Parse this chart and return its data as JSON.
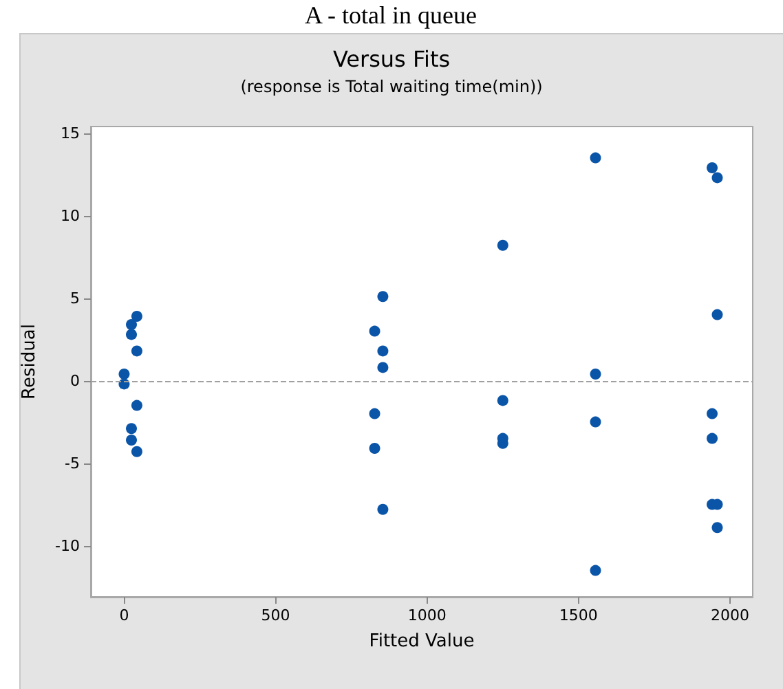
{
  "chart_data": {
    "type": "scatter",
    "title": "Versus Fits",
    "subtitle": "(response is Total waiting time(min))",
    "xlabel": "Fitted Value",
    "ylabel": "Residual",
    "annotations": [
      "A - total in queue"
    ],
    "x": [
      0,
      0,
      24,
      42,
      24,
      42,
      42,
      24,
      24,
      42,
      854,
      827,
      854,
      854,
      827,
      827,
      854,
      1250,
      1250,
      1250,
      1250,
      1556,
      1556,
      1556,
      1556,
      1941,
      1958,
      1958,
      1941,
      1941,
      1941,
      1958,
      1958
    ],
    "values": [
      0.4,
      -0.2,
      3.4,
      3.9,
      2.8,
      1.8,
      -1.5,
      -2.9,
      -3.6,
      -4.3,
      5.1,
      3.0,
      1.8,
      0.8,
      -2.0,
      -4.1,
      -7.8,
      8.2,
      -1.2,
      -3.5,
      -3.8,
      13.5,
      0.4,
      -2.5,
      -11.5,
      12.9,
      12.3,
      4.0,
      -2.0,
      -3.5,
      -7.5,
      -7.5,
      -8.9
    ],
    "color": "#0b55a8",
    "marker": "circle",
    "xlim": [
      -110,
      2075
    ],
    "ylim": [
      -13.1,
      15.4
    ],
    "xticks": [
      0,
      500,
      1000,
      1500,
      2000
    ],
    "yticks": [
      -10,
      -5,
      0,
      5,
      10,
      15
    ],
    "ref_lines": [
      {
        "axis": "y",
        "value": 0,
        "color": "#a0a0a0",
        "line_style": "dashed"
      }
    ]
  }
}
